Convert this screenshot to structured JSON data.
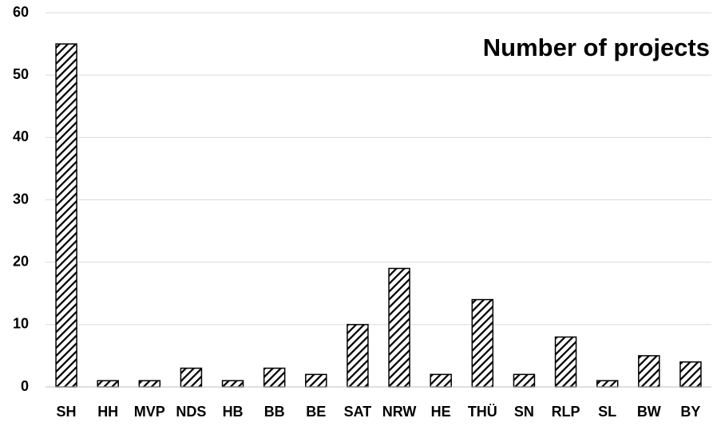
{
  "chart_data": {
    "type": "bar",
    "title": "Number of projects",
    "categories": [
      "SH",
      "HH",
      "MVP",
      "NDS",
      "HB",
      "BB",
      "BE",
      "SAT",
      "NRW",
      "HE",
      "THÜ",
      "SN",
      "RLP",
      "SL",
      "BW",
      "BY"
    ],
    "values": [
      55,
      1,
      1,
      3,
      1,
      3,
      2,
      10,
      19,
      2,
      14,
      2,
      8,
      1,
      5,
      4
    ],
    "color": "#000000",
    "ylim": [
      0,
      60
    ],
    "yticks": [
      0,
      10,
      20,
      30,
      40,
      50,
      60
    ],
    "grid": true
  }
}
